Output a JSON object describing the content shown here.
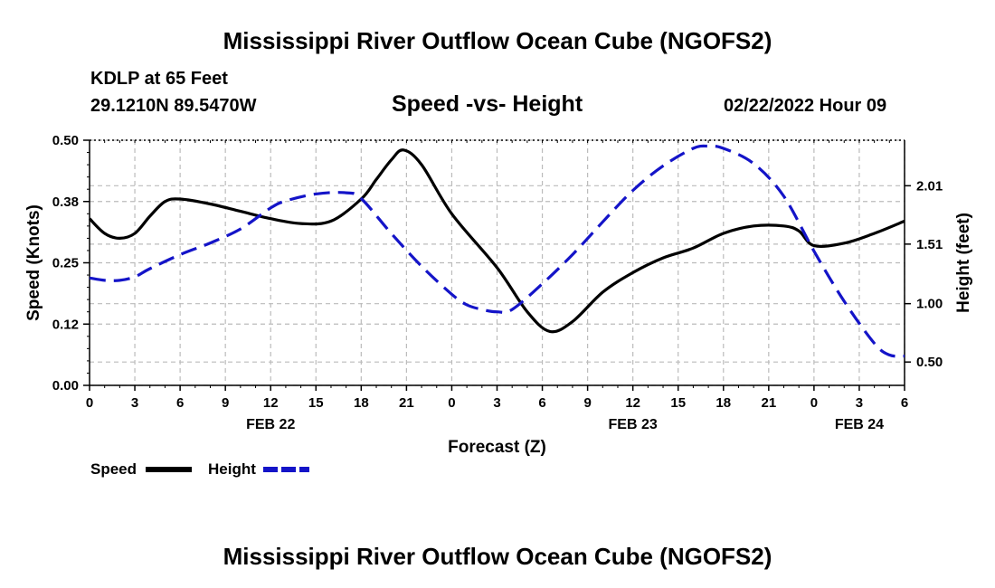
{
  "page": {
    "title_top": "Mississippi River Outflow Ocean Cube (NGOFS2)",
    "title_bottom": "Mississippi River Outflow Ocean Cube (NGOFS2)",
    "station": "KDLP at 65 Feet",
    "coords": "29.1210N  89.5470W",
    "subtitle": "Speed -vs- Height",
    "datetime": "02/22/2022 Hour 09"
  },
  "legend": {
    "speed_label": "Speed",
    "height_label": "Height"
  },
  "colors": {
    "speed": "#000000",
    "height": "#1414c8",
    "grid": "#bbbbbb"
  },
  "chart_data": {
    "type": "line",
    "title": "Speed -vs- Height",
    "xlabel": "Forecast (Z)",
    "ylabel": "Speed (Knots)",
    "y2label": "Height (feet)",
    "x_hours_range": [
      0,
      54
    ],
    "x_ticks": [
      {
        "h": 0,
        "label": "0"
      },
      {
        "h": 3,
        "label": "3"
      },
      {
        "h": 6,
        "label": "6"
      },
      {
        "h": 9,
        "label": "9"
      },
      {
        "h": 12,
        "label": "12"
      },
      {
        "h": 15,
        "label": "15"
      },
      {
        "h": 18,
        "label": "18"
      },
      {
        "h": 21,
        "label": "21"
      },
      {
        "h": 24,
        "label": "0"
      },
      {
        "h": 27,
        "label": "3"
      },
      {
        "h": 30,
        "label": "6"
      },
      {
        "h": 33,
        "label": "9"
      },
      {
        "h": 36,
        "label": "12"
      },
      {
        "h": 39,
        "label": "15"
      },
      {
        "h": 42,
        "label": "18"
      },
      {
        "h": 45,
        "label": "21"
      },
      {
        "h": 48,
        "label": "0"
      },
      {
        "h": 51,
        "label": "3"
      },
      {
        "h": 54,
        "label": "6"
      }
    ],
    "date_labels": [
      {
        "h": 12,
        "label": "FEB 22"
      },
      {
        "h": 36,
        "label": "FEB 23"
      },
      {
        "h": 51,
        "label": "FEB 24"
      }
    ],
    "ylim": [
      0,
      0.5
    ],
    "y_ticks": [
      {
        "v": 0.0,
        "label": "0.00"
      },
      {
        "v": 0.125,
        "label": "0.12"
      },
      {
        "v": 0.25,
        "label": "0.25"
      },
      {
        "v": 0.375,
        "label": "0.38"
      },
      {
        "v": 0.5,
        "label": "0.50"
      }
    ],
    "y2lim": [
      0.3,
      2.4
    ],
    "y2_ticks": [
      {
        "v": 0.5,
        "label": "0.50"
      },
      {
        "v": 1.0,
        "label": "1.00"
      },
      {
        "v": 1.51,
        "label": "1.51"
      },
      {
        "v": 2.01,
        "label": "2.01"
      }
    ],
    "series": [
      {
        "name": "Speed",
        "axis": "left",
        "style": "solid",
        "x": [
          0,
          1,
          2,
          3,
          4,
          5,
          6,
          8,
          10,
          12,
          14,
          16,
          18,
          19,
          20,
          20.8,
          22,
          24,
          27,
          29,
          30.5,
          32,
          34,
          36,
          38,
          40,
          42,
          44,
          46,
          47,
          48,
          50,
          52,
          54
        ],
        "values": [
          0.34,
          0.31,
          0.3,
          0.31,
          0.345,
          0.375,
          0.38,
          0.37,
          0.355,
          0.34,
          0.33,
          0.335,
          0.38,
          0.42,
          0.46,
          0.48,
          0.45,
          0.35,
          0.24,
          0.15,
          0.11,
          0.13,
          0.19,
          0.23,
          0.26,
          0.28,
          0.31,
          0.325,
          0.325,
          0.315,
          0.285,
          0.29,
          0.31,
          0.335
        ]
      },
      {
        "name": "Height",
        "axis": "right",
        "style": "dashed",
        "x": [
          0,
          1,
          2,
          3,
          4,
          6,
          8,
          10,
          12,
          13,
          15,
          17,
          18,
          20,
          22,
          24,
          25,
          26,
          27,
          28,
          30,
          32,
          34,
          36,
          38,
          40,
          41,
          42,
          44,
          46,
          48,
          50,
          52,
          53,
          54
        ],
        "values": [
          1.22,
          1.2,
          1.2,
          1.23,
          1.3,
          1.42,
          1.52,
          1.64,
          1.82,
          1.88,
          1.94,
          1.95,
          1.9,
          1.6,
          1.32,
          1.08,
          0.99,
          0.95,
          0.93,
          0.95,
          1.17,
          1.42,
          1.7,
          1.97,
          2.18,
          2.33,
          2.35,
          2.33,
          2.2,
          1.92,
          1.45,
          1.02,
          0.66,
          0.56,
          0.55
        ]
      }
    ]
  }
}
